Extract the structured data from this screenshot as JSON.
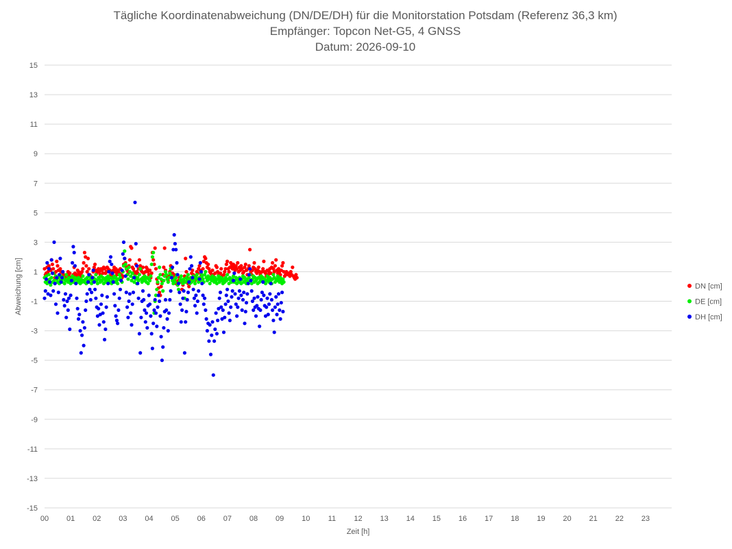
{
  "chart_data": {
    "type": "scatter",
    "title": "Tägliche Koordinatenabweichung (DN/DE/DH) für die Monitorstation Potsdam (Referenz 36,3 km)",
    "subtitle": "Empfänger: Topcon Net-G5, 4 GNSS",
    "date_label": "Datum: 2026-09-10",
    "xlabel": "Zeit [h]",
    "ylabel": "Abweichung [cm]",
    "xlim": [
      0,
      24
    ],
    "ylim": [
      -15,
      15
    ],
    "x_ticks": [
      "00",
      "01",
      "02",
      "03",
      "04",
      "05",
      "06",
      "07",
      "08",
      "09",
      "10",
      "11",
      "12",
      "13",
      "14",
      "15",
      "16",
      "17",
      "18",
      "19",
      "20",
      "21",
      "22",
      "23"
    ],
    "y_ticks": [
      15,
      13,
      11,
      9,
      7,
      5,
      3,
      1,
      -1,
      -3,
      -5,
      -7,
      -9,
      -11,
      -13,
      -15
    ],
    "grid": "horizontal",
    "legend_position": "right",
    "sample_interval_h": 0.0333,
    "series": [
      {
        "name": "DN [cm]",
        "color": "#ff0000",
        "x_start": 0,
        "x_step": 0.0333,
        "values": [
          1.2,
          0.8,
          0.9,
          1.3,
          1.0,
          1.4,
          1.2,
          1.1,
          1.8,
          1.5,
          1.2,
          0.9,
          0.6,
          1.0,
          1.7,
          1.4,
          1.1,
          0.8,
          1.2,
          1.0,
          0.7,
          0.9,
          0.8,
          0.7,
          0.6,
          0.5,
          0.8,
          1.0,
          0.7,
          0.9,
          0.6,
          0.4,
          0.5,
          0.8,
          1.3,
          0.9,
          0.7,
          0.8,
          1.1,
          1.0,
          0.8,
          0.7,
          0.9,
          1.0,
          1.2,
          1.6,
          2.3,
          2.0,
          1.4,
          1.0,
          1.9,
          1.2,
          0.8,
          0.7,
          0.5,
          0.6,
          1.0,
          1.3,
          1.5,
          1.1,
          0.9,
          1.0,
          1.2,
          1.0,
          0.8,
          1.2,
          1.1,
          0.9,
          1.3,
          1.2,
          0.9,
          1.0,
          1.3,
          1.2,
          1.0,
          1.1,
          0.8,
          0.7,
          1.0,
          1.1,
          1.3,
          1.0,
          1.2,
          0.8,
          1.0,
          1.1,
          0.9,
          1.2,
          0.8,
          0.6,
          0.7,
          1.5,
          1.9,
          1.6,
          1.3,
          1.1,
          0.9,
          1.4,
          1.8,
          2.7,
          2.6,
          1.3,
          1.2,
          1.0,
          0.8,
          1.5,
          1.0,
          0.9,
          1.2,
          1.8,
          1.4,
          1.1,
          1.0,
          1.3,
          0.9,
          0.7,
          1.0,
          1.3,
          1.2,
          1.0,
          0.8,
          1.1,
          0.6,
          0.9,
          2.3,
          1.8,
          1.5,
          2.6,
          1.2,
          0.5,
          0.2,
          -0.1,
          -0.4,
          -0.6,
          0.0,
          0.4,
          0.8,
          1.3,
          2.6,
          1.1,
          0.7,
          0.5,
          0.4,
          0.7,
          1.0,
          1.4,
          1.2,
          0.9,
          0.6,
          0.8,
          0.5,
          0.2,
          0.3,
          0.1,
          0.4,
          0.6,
          0.5,
          0.3,
          -0.2,
          0.1,
          0.4,
          0.7,
          1.9,
          1.0,
          0.6,
          0.2,
          0.0,
          0.3,
          0.5,
          0.9,
          1.1,
          0.8,
          0.6,
          0.4,
          0.7,
          1.0,
          0.9,
          1.2,
          1.4,
          1.1,
          0.8,
          0.5,
          1.2,
          1.7,
          2.0,
          1.9,
          1.6,
          1.3,
          1.5,
          1.2,
          1.0,
          0.9,
          0.7,
          1.1,
          0.8,
          0.6,
          0.9,
          1.4,
          1.3,
          1.0,
          0.8,
          0.5,
          0.9,
          1.2,
          0.7,
          0.4,
          0.8,
          1.0,
          1.2,
          1.5,
          1.7,
          1.2,
          1.0,
          1.3,
          1.6,
          1.4,
          1.2,
          1.5,
          1.3,
          1.1,
          1.4,
          1.2,
          1.6,
          1.0,
          1.3,
          1.1,
          1.4,
          1.2,
          0.9,
          1.0,
          1.3,
          1.5,
          1.1,
          0.8,
          1.2,
          1.4,
          2.5,
          1.0,
          0.8,
          1.1,
          1.3,
          1.6,
          1.2,
          1.0,
          0.9,
          1.1,
          1.3,
          1.0,
          0.8,
          0.7,
          1.0,
          1.2,
          1.7,
          1.0,
          0.9,
          0.7,
          1.1,
          0.8,
          1.0,
          1.2,
          0.9,
          1.3,
          1.6,
          1.2,
          1.0,
          1.4,
          1.8,
          1.1,
          0.9,
          1.2,
          1.0,
          0.8,
          1.1,
          1.4,
          1.6,
          1.0,
          0.7,
          0.8,
          1.0,
          0.9,
          0.8,
          0.9,
          0.7,
          1.0,
          0.8,
          1.3,
          0.7,
          0.6,
          0.5,
          0.8,
          0.6
        ]
      },
      {
        "name": "DE [cm]",
        "color": "#00ee00",
        "x_start": 0,
        "x_step": 0.0333,
        "values": [
          0.6,
          0.3,
          0.7,
          0.2,
          0.4,
          0.8,
          0.5,
          0.1,
          0.6,
          0.3,
          0.9,
          0.4,
          0.2,
          0.7,
          0.5,
          0.3,
          0.6,
          0.2,
          0.4,
          0.7,
          0.3,
          0.5,
          0.6,
          0.2,
          0.4,
          0.8,
          0.5,
          0.3,
          0.6,
          0.4,
          0.2,
          0.5,
          0.7,
          0.3,
          0.4,
          0.6,
          0.2,
          0.5,
          0.3,
          0.6,
          0.4,
          0.2,
          0.5,
          0.3,
          0.7,
          0.4,
          0.3,
          0.5,
          0.2,
          0.6,
          0.4,
          0.3,
          0.7,
          0.5,
          0.2,
          0.4,
          0.6,
          0.3,
          0.5,
          0.8,
          0.4,
          0.2,
          0.6,
          0.5,
          0.3,
          0.7,
          0.4,
          0.6,
          0.2,
          0.5,
          0.3,
          0.6,
          0.4,
          0.7,
          0.5,
          0.3,
          0.6,
          0.2,
          0.4,
          0.5,
          0.7,
          0.3,
          0.6,
          0.4,
          0.2,
          0.5,
          0.8,
          0.6,
          0.4,
          0.3,
          1.0,
          1.4,
          2.4,
          1.5,
          1.2,
          0.8,
          0.5,
          1.3,
          1.0,
          0.7,
          0.4,
          0.9,
          0.6,
          0.3,
          0.7,
          0.5,
          0.2,
          0.6,
          0.4,
          0.8,
          1.2,
          0.5,
          0.3,
          0.6,
          0.4,
          0.7,
          0.5,
          0.3,
          0.6,
          0.2,
          0.5,
          0.4,
          0.7,
          1.5,
          2.0,
          2.3,
          -1.8,
          -1.0,
          -0.6,
          -0.2,
          0.3,
          0.6,
          1.3,
          0.8,
          0.5,
          0.2,
          -0.3,
          0.4,
          0.7,
          1.0,
          0.8,
          0.5,
          0.3,
          0.6,
          0.9,
          1.2,
          0.7,
          0.4,
          0.2,
          0.5,
          0.3,
          0.6,
          0.8,
          0.1,
          -0.2,
          0.3,
          0.5,
          0.7,
          0.4,
          0.2,
          0.5,
          -0.8,
          0.3,
          0.6,
          0.4,
          0.8,
          0.5,
          0.2,
          0.6,
          0.3,
          0.5,
          0.7,
          0.4,
          0.2,
          0.6,
          0.8,
          0.5,
          0.3,
          0.6,
          0.4,
          0.9,
          0.7,
          0.5,
          0.3,
          0.8,
          1.0,
          0.6,
          0.4,
          0.7,
          0.5,
          0.2,
          0.6,
          0.4,
          0.7,
          0.5,
          0.3,
          0.6,
          0.4,
          0.2,
          0.5,
          0.7,
          0.3,
          0.5,
          0.6,
          0.4,
          0.2,
          0.5,
          0.3,
          0.6,
          0.4,
          0.8,
          0.5,
          0.2,
          0.6,
          0.4,
          0.3,
          0.5,
          0.7,
          0.3,
          0.4,
          0.6,
          0.2,
          0.5,
          0.3,
          0.6,
          0.4,
          0.2,
          0.5,
          0.7,
          0.3,
          0.6,
          0.4,
          0.2,
          0.5,
          0.3,
          0.6,
          0.8,
          0.4,
          0.2,
          0.5,
          0.7,
          0.3,
          0.6,
          0.4,
          0.5,
          0.2,
          0.6,
          0.3,
          0.5,
          0.7,
          0.4,
          0.6,
          0.3,
          0.5,
          0.2,
          0.4,
          0.7,
          0.5,
          0.3,
          0.6,
          0.4,
          0.2,
          0.5,
          0.8,
          0.6,
          0.3,
          0.5,
          0.4,
          0.7,
          0.5,
          0.3,
          0.6,
          0.4,
          0.2,
          0.5,
          0.3
        ]
      },
      {
        "name": "DH [cm]",
        "color": "#0000ee",
        "x_start": 0,
        "x_step": 0.0333,
        "values": [
          -0.8,
          -0.3,
          0.5,
          1.6,
          -0.5,
          1.2,
          0.3,
          -0.6,
          1.8,
          0.9,
          -0.3,
          3.0,
          0.2,
          -1.2,
          0.6,
          -1.8,
          -0.4,
          0.8,
          1.9,
          0.3,
          0.6,
          1.0,
          -0.9,
          -1.3,
          -0.5,
          -2.1,
          -1.0,
          -1.6,
          -0.8,
          -2.9,
          -0.6,
          0.4,
          1.6,
          2.7,
          2.3,
          1.4,
          0.2,
          -0.8,
          -1.5,
          -2.2,
          -1.9,
          -3.0,
          -4.5,
          -3.3,
          -2.4,
          -4.0,
          -2.8,
          -1.6,
          -1.0,
          -0.5,
          0.3,
          0.8,
          -0.2,
          -0.9,
          -0.4,
          0.6,
          1.1,
          0.3,
          -0.2,
          -0.8,
          -1.4,
          -2.0,
          -1.5,
          -2.6,
          -1.9,
          -1.2,
          -0.6,
          -1.8,
          -2.4,
          -3.6,
          -2.9,
          -1.4,
          -0.7,
          0.2,
          1.0,
          1.7,
          2.0,
          1.5,
          0.9,
          0.3,
          -0.5,
          -1.3,
          -2.0,
          -2.3,
          -2.5,
          -1.6,
          -0.8,
          -0.2,
          0.4,
          1.1,
          2.2,
          3.0,
          1.9,
          0.7,
          -0.4,
          -1.4,
          -2.1,
          -1.0,
          -0.5,
          -1.8,
          -2.6,
          -1.2,
          -0.4,
          0.6,
          5.7,
          2.9,
          1.4,
          0.2,
          -0.8,
          -3.2,
          -4.5,
          -2.1,
          -1.0,
          -0.3,
          -0.9,
          -1.6,
          -2.4,
          -1.8,
          -2.8,
          -1.3,
          -0.6,
          -1.2,
          -2.0,
          -3.2,
          -4.2,
          -2.5,
          -1.6,
          -0.9,
          -1.8,
          -2.7,
          -1.4,
          -0.6,
          -1.0,
          -2.0,
          -3.4,
          -5.0,
          -4.1,
          -2.8,
          -1.7,
          -0.9,
          -1.6,
          -2.2,
          -3.0,
          -1.8,
          -0.9,
          -0.3,
          0.6,
          1.3,
          2.5,
          3.5,
          2.9,
          2.5,
          1.6,
          0.8,
          0.2,
          -0.4,
          -1.2,
          -2.4,
          -1.6,
          -0.8,
          -0.3,
          -4.5,
          -2.4,
          -1.7,
          -0.9,
          -0.4,
          0.3,
          1.2,
          2.0,
          1.4,
          0.6,
          -0.2,
          -0.8,
          -1.3,
          -0.6,
          -1.8,
          -1.0,
          -0.3,
          0.5,
          1.6,
          1.0,
          0.2,
          -0.6,
          -1.2,
          -0.8,
          -1.6,
          -2.2,
          -3.0,
          -2.5,
          -3.7,
          -2.6,
          -4.6,
          -3.3,
          -2.4,
          -6.0,
          -3.7,
          -2.9,
          -1.8,
          -3.2,
          -2.3,
          -1.5,
          -0.8,
          -0.4,
          -1.4,
          -2.2,
          -1.6,
          -3.1,
          -2.1,
          -1.2,
          -0.6,
          -0.2,
          -1.0,
          -1.8,
          -2.3,
          -1.4,
          -0.7,
          -0.3,
          0.4,
          0.9,
          -0.5,
          -1.2,
          -2.0,
          -1.4,
          -0.8,
          -0.3,
          0.5,
          -0.6,
          -1.6,
          -0.9,
          -0.4,
          -2.5,
          -1.7,
          -1.1,
          -0.5,
          0.2,
          0.8,
          1.2,
          0.4,
          -0.3,
          -1.0,
          -1.6,
          -0.8,
          -1.4,
          -2.0,
          -1.3,
          -0.7,
          -1.5,
          -2.7,
          -1.6,
          -0.9,
          -0.4,
          0.3,
          -0.6,
          -1.3,
          -2.0,
          -1.4,
          -0.8,
          -1.9,
          -1.2,
          -0.5,
          0.2,
          -0.9,
          -1.6,
          -2.3,
          -3.1,
          -1.4,
          -0.7,
          -1.9,
          -1.2,
          -0.5,
          -1.6,
          -2.2,
          -1.1,
          -0.4,
          -1.7
        ]
      }
    ]
  }
}
